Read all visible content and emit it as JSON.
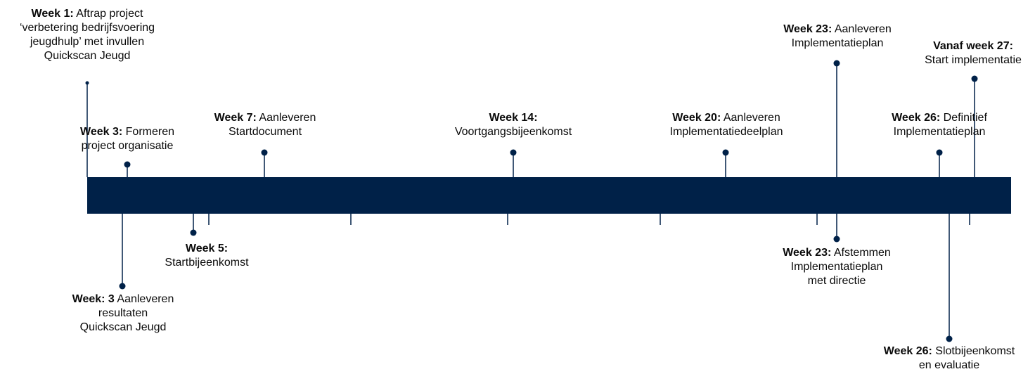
{
  "colors": {
    "bar": "#002148",
    "line": "#002148",
    "text": "#0a0a0a"
  },
  "milestones": {
    "m1": {
      "head": "Week 1:",
      "text": "Aftrap project",
      "rest": [
        "‘verbetering bedrijfsvoering",
        "jeugdhulp’ met invullen",
        "Quickscan Jeugd"
      ]
    },
    "m2": {
      "head": "Week 3:",
      "text": "Formeren",
      "rest": [
        "project organisatie"
      ]
    },
    "m3": {
      "head": "Week 7:",
      "text": "Aanleveren",
      "rest": [
        "Startdocument"
      ]
    },
    "m4": {
      "head": "Week 14:",
      "text": "",
      "rest": [
        "Voortgangsbijeenkomst"
      ]
    },
    "m5": {
      "head": "Week 20:",
      "text": "Aanleveren",
      "rest": [
        "Implementatiedeelplan"
      ]
    },
    "m6": {
      "head": "Week 23:",
      "text": "Aanleveren",
      "rest": [
        "Implementatieplan"
      ]
    },
    "m7": {
      "head": "Vanaf week 27:",
      "text": "",
      "rest": [
        "Start implementatie"
      ]
    },
    "m8": {
      "head": "Week 26:",
      "text": "Definitief",
      "rest": [
        "Implementatieplan"
      ]
    },
    "m9": {
      "head": "Week 5:",
      "text": "",
      "rest": [
        "Startbijeenkomst"
      ]
    },
    "m10": {
      "head": "Week: 3",
      "text": "Aanleveren",
      "rest": [
        "resultaten",
        "Quickscan Jeugd"
      ]
    },
    "m11": {
      "head": "Week 23:",
      "text": "Afstemmen",
      "rest": [
        "Implementatieplan",
        "met directie"
      ]
    },
    "m12": {
      "head": "Week 26:",
      "text": "Slotbijeenkomst",
      "rest": [
        "en evaluatie"
      ]
    }
  }
}
